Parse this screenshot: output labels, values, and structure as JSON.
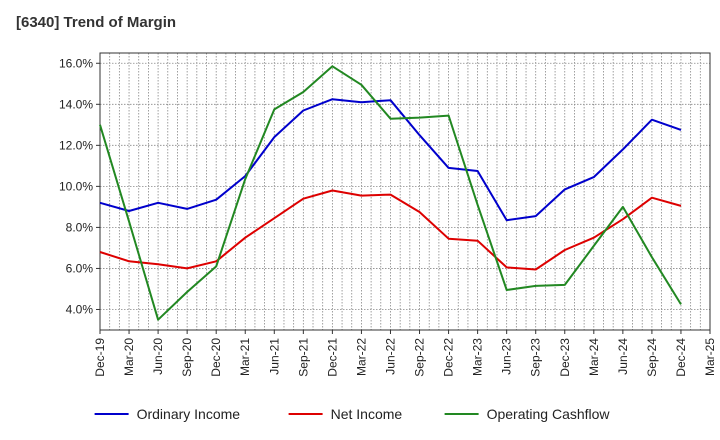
{
  "chart_data": {
    "type": "line",
    "title": "[6340]  Trend of Margin",
    "xlabel": "",
    "ylabel": "",
    "x": [
      "Dec-19",
      "Mar-20",
      "Jun-20",
      "Sep-20",
      "Dec-20",
      "Mar-21",
      "Jun-21",
      "Sep-21",
      "Dec-21",
      "Mar-22",
      "Jun-22",
      "Sep-22",
      "Dec-22",
      "Mar-23",
      "Jun-23",
      "Sep-23",
      "Dec-23",
      "Mar-24",
      "Jun-24",
      "Sep-24",
      "Dec-24",
      "Mar-25"
    ],
    "ylim": [
      3.0,
      16.5
    ],
    "yticks": [
      4.0,
      6.0,
      8.0,
      10.0,
      12.0,
      14.0,
      16.0
    ],
    "ytick_labels": [
      "4.0%",
      "6.0%",
      "8.0%",
      "10.0%",
      "12.0%",
      "14.0%",
      "16.0%"
    ],
    "grid": true,
    "legend_position": "bottom",
    "series": [
      {
        "name": "Ordinary Income",
        "color": "#0000cc",
        "values": [
          9.2,
          8.8,
          9.2,
          8.9,
          9.35,
          10.5,
          12.4,
          13.7,
          14.25,
          14.1,
          14.2,
          12.5,
          10.9,
          10.75,
          8.35,
          8.55,
          9.85,
          10.45,
          11.8,
          13.25,
          12.75,
          null
        ]
      },
      {
        "name": "Net Income",
        "color": "#dd0000",
        "values": [
          6.8,
          6.35,
          6.2,
          6.0,
          6.35,
          7.5,
          8.45,
          9.4,
          9.8,
          9.55,
          9.6,
          8.75,
          7.45,
          7.35,
          6.05,
          5.95,
          6.9,
          7.5,
          8.4,
          9.45,
          9.05,
          null
        ]
      },
      {
        "name": "Operating Cashflow",
        "color": "#228822",
        "values": [
          13.0,
          8.3,
          3.5,
          4.85,
          6.1,
          10.35,
          13.75,
          14.6,
          15.85,
          14.95,
          13.3,
          13.35,
          13.45,
          9.1,
          4.95,
          5.15,
          5.2,
          7.1,
          9.0,
          6.55,
          4.25,
          null
        ]
      }
    ]
  }
}
